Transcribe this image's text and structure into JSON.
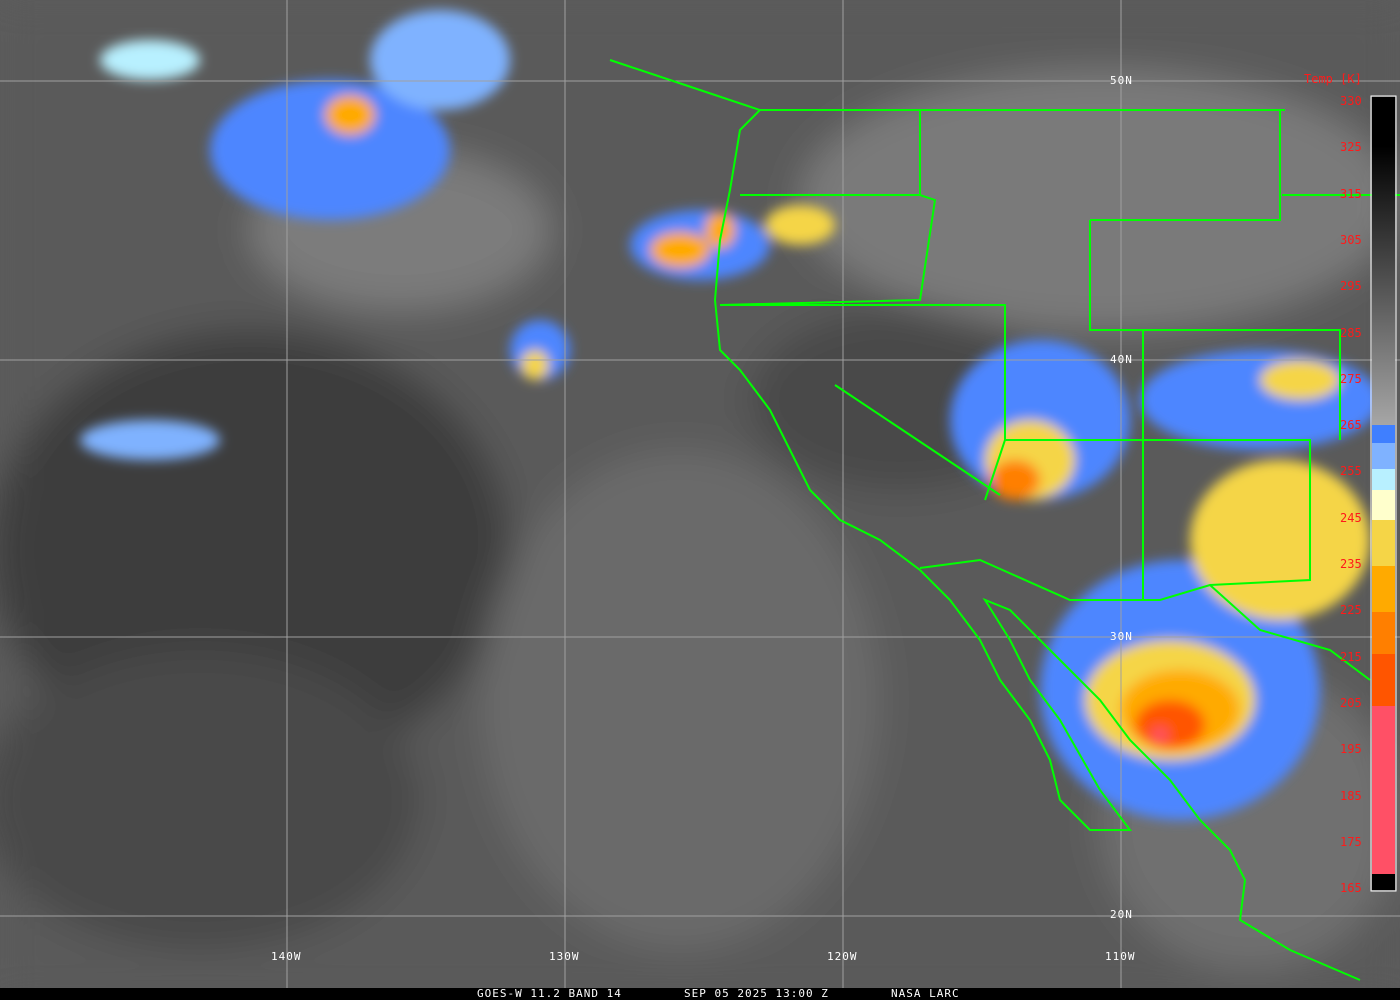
{
  "caption": {
    "satellite": "GOES-W 11.2 BAND 14",
    "datetime": "SEP 05 2025 13:00 Z",
    "credit": "NASA LARC"
  },
  "colorbar": {
    "title": "Temp [K]",
    "ticks": [
      "330",
      "325",
      "315",
      "305",
      "295",
      "285",
      "275",
      "265",
      "255",
      "245",
      "235",
      "225",
      "215",
      "205",
      "195",
      "185",
      "175",
      "165"
    ],
    "colors": [
      "#000000",
      "#7f7f7f",
      "#a6a6a6",
      "#3f7fff",
      "#7fb2ff",
      "#b8f0ff",
      "#ffffcc",
      "#f5d547",
      "#ffaa00",
      "#ff7f00",
      "#ff5500",
      "#ff5066",
      "#000000"
    ]
  },
  "grid": {
    "longitudes": [
      "140W",
      "130W",
      "120W",
      "110W"
    ],
    "latitudes": [
      "50N",
      "40N",
      "30N",
      "20N"
    ]
  },
  "colors": {
    "border": "#00ff00",
    "grid": "#a0a0a0",
    "label": "#ff1a1a"
  }
}
